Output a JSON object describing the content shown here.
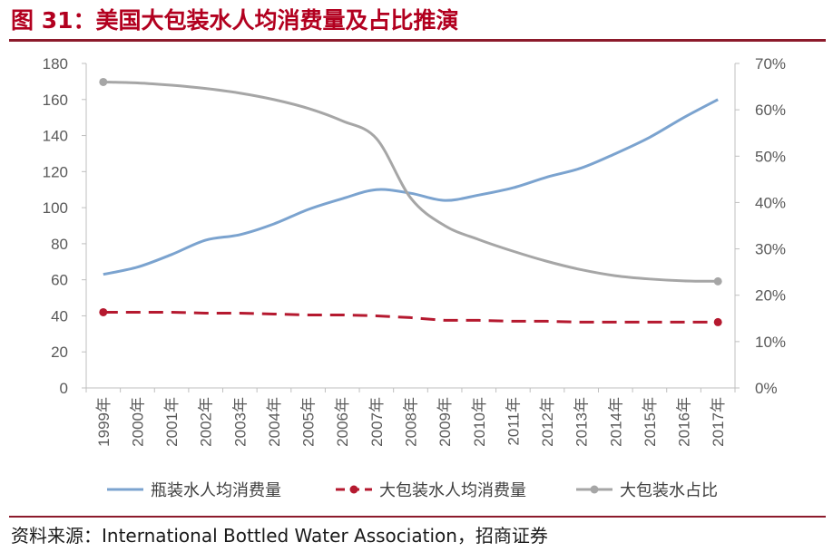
{
  "header": {
    "title": "图 31：美国大包装水人均消费量及占比推演"
  },
  "footer": {
    "source": "资料来源：International Bottled Water Association，招商证券"
  },
  "chart_data": {
    "type": "line",
    "title": "图 31：美国大包装水人均消费量及占比推演",
    "x": [
      "1999年",
      "2000年",
      "2001年",
      "2002年",
      "2003年",
      "2004年",
      "2005年",
      "2006年",
      "2007年",
      "2008年",
      "2009年",
      "2010年",
      "2011年",
      "2012年",
      "2013年",
      "2014年",
      "2015年",
      "2016年",
      "2017年"
    ],
    "left_axis": {
      "ylim": [
        0,
        180
      ],
      "ticks": [
        "0",
        "20",
        "40",
        "60",
        "80",
        "100",
        "120",
        "140",
        "160",
        "180"
      ]
    },
    "right_axis": {
      "ylim": [
        0,
        70
      ],
      "ticks": [
        "0%",
        "10%",
        "20%",
        "30%",
        "40%",
        "50%",
        "60%",
        "70%"
      ]
    },
    "grid": false,
    "legend_position": "bottom",
    "series": [
      {
        "name": "瓶装水人均消费量",
        "axis": "left",
        "style": "solid",
        "color": "#7ba3cf",
        "values": [
          63,
          67,
          74,
          82,
          85,
          91,
          99,
          105,
          110,
          108,
          104,
          107,
          111,
          117,
          122,
          130,
          139,
          150,
          160
        ]
      },
      {
        "name": "大包装水人均消费量",
        "axis": "left",
        "style": "dashed",
        "color": "#b5192f",
        "values": [
          42,
          42,
          42,
          41.5,
          41.5,
          41,
          40.5,
          40.5,
          40,
          39,
          37.5,
          37.5,
          37,
          37,
          36.5,
          36.5,
          36.5,
          36.5,
          36.5
        ]
      },
      {
        "name": "大包装水占比",
        "axis": "right",
        "style": "solid",
        "color": "#a6a6a6",
        "values": [
          66,
          65.8,
          65.3,
          64.6,
          63.6,
          62.2,
          60.3,
          57.6,
          53.8,
          41,
          35,
          32,
          29.5,
          27.3,
          25.5,
          24.2,
          23.5,
          23.1,
          23
        ]
      }
    ]
  }
}
